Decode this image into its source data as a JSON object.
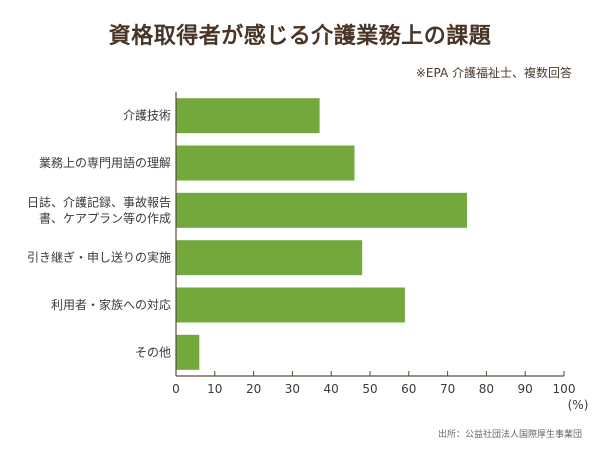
{
  "title": "資格取得者が感じる介護業務上の課題",
  "subtitle": "※EPA 介護福祉士、複数回答",
  "source": "出所：公益社団法人国際厚生事業団",
  "colors": {
    "bar": "#72a83c",
    "axis": "#5a4a3a",
    "text": "#3a3a3a"
  },
  "chart_data": {
    "type": "bar",
    "orientation": "horizontal",
    "categories": [
      [
        "介護技術"
      ],
      [
        "業務上の専門用語の理解"
      ],
      [
        "日誌、介護記録、事故報告",
        "書、ケアプラン等の作成"
      ],
      [
        "引き継ぎ・申し送りの実施"
      ],
      [
        "利用者・家族への対応"
      ],
      [
        "その他"
      ]
    ],
    "values": [
      37,
      46,
      75,
      48,
      59,
      6
    ],
    "xlim": [
      0,
      100
    ],
    "xticks": [
      0,
      10,
      20,
      30,
      40,
      50,
      60,
      70,
      80,
      90,
      100
    ],
    "xunit": "(%)",
    "grid": false,
    "legend": "none"
  }
}
